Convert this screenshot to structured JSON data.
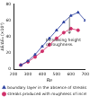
{
  "chart_data": {
    "type": "line",
    "x_label": "Re",
    "y_label": "ΔE/ΔE₀ (×10⁴)",
    "annotation": "Increasing height of roughness.",
    "x": [
      250,
      300,
      350,
      400,
      450,
      500,
      550,
      600,
      650,
      700
    ],
    "series": [
      {
        "name": "boundary layer in the absence of streaks",
        "color": "#2a3f9e",
        "marker": "triangle",
        "values": [
          5,
          10,
          18,
          28,
          38,
          48,
          58,
          66,
          70,
          60
        ]
      },
      {
        "name": "streaks produced with roughness of increasing height",
        "color": "#d0306a",
        "marker": "circle",
        "values": [
          5,
          9,
          15,
          22,
          30,
          38,
          45,
          50,
          48,
          null
        ]
      }
    ],
    "xlim": [
      200,
      700
    ],
    "xticks": [
      200,
      300,
      400,
      500,
      600,
      700
    ],
    "ylim": [
      0,
      80
    ],
    "yticks": [
      0,
      20,
      40,
      60,
      80
    ],
    "grid": false,
    "legend": "bottom"
  }
}
